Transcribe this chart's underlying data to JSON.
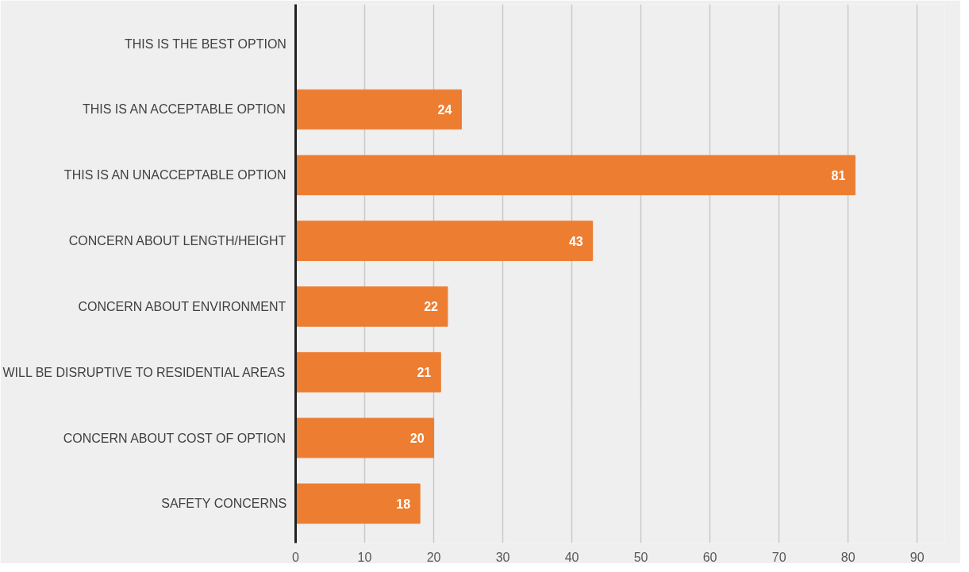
{
  "chart_data": {
    "type": "bar",
    "orientation": "horizontal",
    "categories": [
      "THIS IS THE BEST OPTION",
      "THIS IS AN ACCEPTABLE OPTION",
      "THIS IS AN UNACCEPTABLE OPTION",
      "CONCERN ABOUT LENGTH/HEIGHT",
      "CONCERN ABOUT ENVIRONMENT",
      "WILL BE DISRUPTIVE TO RESIDENTIAL AREAS",
      "CONCERN ABOUT COST OF OPTION",
      "SAFETY CONCERNS"
    ],
    "values": [
      0,
      24,
      81,
      43,
      22,
      21,
      20,
      18
    ],
    "value_labels": [
      null,
      "24",
      "81",
      "43",
      "22",
      "21",
      "20",
      "18"
    ],
    "color": "#ed7d31",
    "xlim": [
      0,
      94
    ],
    "xticks": [
      0,
      10,
      20,
      30,
      40,
      50,
      60,
      70,
      80,
      90
    ],
    "grid": "x"
  }
}
